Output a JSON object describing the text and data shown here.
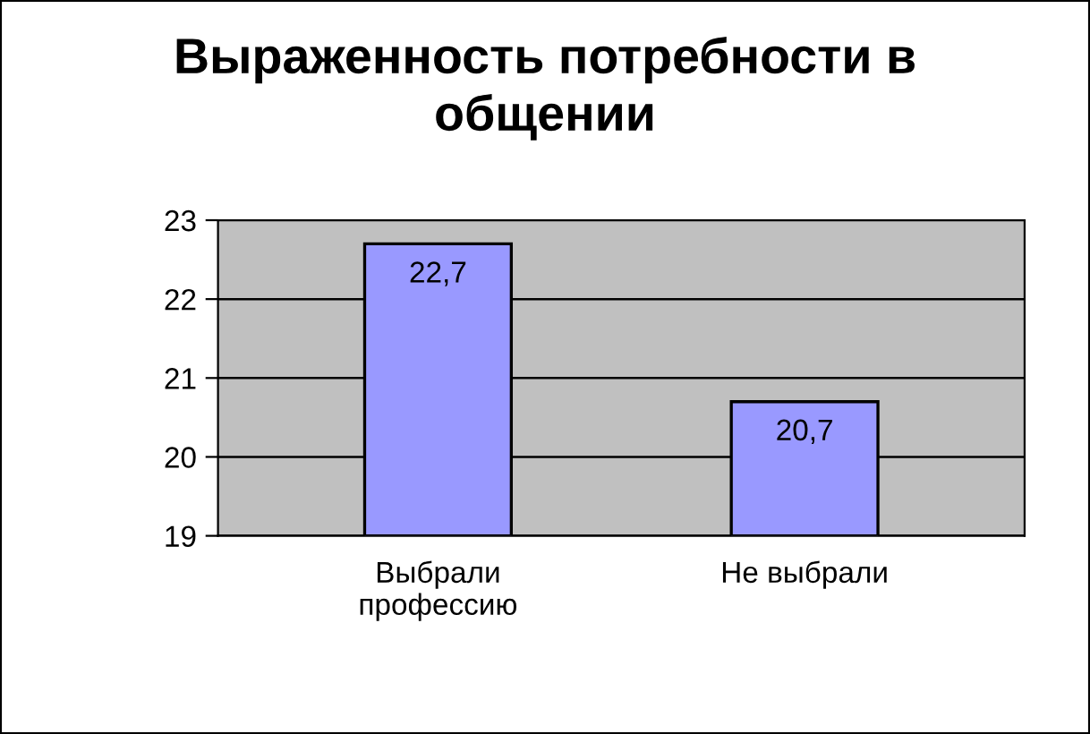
{
  "chart_data": {
    "type": "bar",
    "title": "Выраженность потребности в общении",
    "categories": [
      "Выбрали профессию",
      "Не выбрали"
    ],
    "values": [
      22.7,
      20.7
    ],
    "color": "#9999ff",
    "value_labels": [
      "22,7",
      "20,7"
    ],
    "ylim": [
      19,
      23
    ],
    "yticks": [
      19,
      20,
      21,
      22,
      23
    ],
    "grid": "y",
    "legend": false
  }
}
